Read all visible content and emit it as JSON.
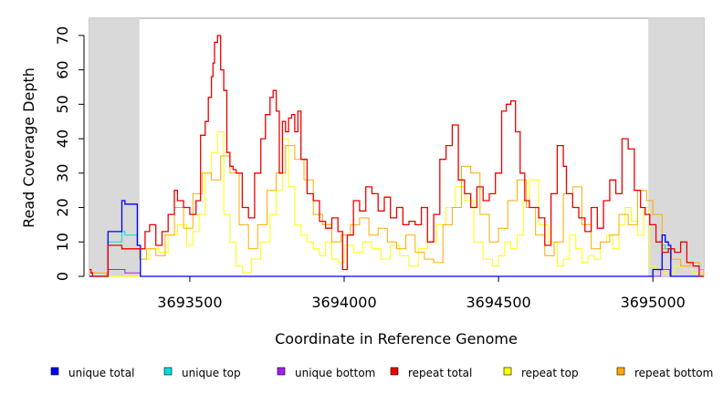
{
  "chart_data": {
    "type": "line",
    "title": "",
    "xlabel": "Coordinate in Reference Genome",
    "ylabel": "Read Coverage Depth",
    "xlim": [
      3693175,
      3695165
    ],
    "ylim": [
      0,
      75
    ],
    "x_ticks": [
      3693500,
      3694000,
      3694500,
      3695000
    ],
    "x_tick_labels": [
      "3693500",
      "3694000",
      "3694500",
      "3695000"
    ],
    "y_ticks": [
      0,
      10,
      20,
      30,
      40,
      50,
      60,
      70
    ],
    "y_tick_labels": [
      "0",
      "10",
      "20",
      "30",
      "40",
      "50",
      "60",
      "70"
    ],
    "shaded_regions": [
      [
        3693175,
        3693337
      ],
      [
        3694985,
        3695165
      ]
    ],
    "grid": false,
    "legend_position": "bottom",
    "series": [
      {
        "name": "unique total",
        "color": "#0000ff",
        "x": [
          3693175,
          3693230,
          3693235,
          3693275,
          3693280,
          3693290,
          3693330,
          3693337,
          3693340,
          3694990,
          3695000,
          3695030,
          3695040,
          3695050,
          3695058,
          3695165
        ],
        "values": [
          0,
          0,
          13,
          13,
          22,
          21,
          9,
          9,
          0,
          0,
          2,
          12,
          10,
          9,
          0,
          0
        ]
      },
      {
        "name": "unique top",
        "color": "#00dddd",
        "x": [
          3693175,
          3693230,
          3693235,
          3693275,
          3693280,
          3693290,
          3693330,
          3693337,
          3693340,
          3694990,
          3695000,
          3695030,
          3695040,
          3695050,
          3695058,
          3695165
        ],
        "values": [
          0,
          0,
          10,
          10,
          13,
          12,
          9,
          9,
          0,
          0,
          2,
          9,
          8,
          7,
          0,
          0
        ]
      },
      {
        "name": "unique bottom",
        "color": "#a020f0",
        "x": [
          3693175,
          3693230,
          3693236,
          3693280,
          3693290,
          3693337,
          3693340,
          3694995,
          3695025,
          3695040,
          3695055,
          3695165
        ],
        "values": [
          0,
          0,
          2,
          2,
          1,
          1,
          0,
          0,
          2,
          2,
          0,
          0
        ]
      },
      {
        "name": "repeat total",
        "color": "#ee0000",
        "x": [
          3693175,
          3693180,
          3693185,
          3693230,
          3693235,
          3693275,
          3693280,
          3693337,
          3693355,
          3693370,
          3693390,
          3693410,
          3693430,
          3693450,
          3693460,
          3693480,
          3693500,
          3693520,
          3693535,
          3693550,
          3693560,
          3693570,
          3693575,
          3693580,
          3693590,
          3693600,
          3693610,
          3693620,
          3693630,
          3693640,
          3693650,
          3693670,
          3693690,
          3693710,
          3693730,
          3693745,
          3693760,
          3693770,
          3693780,
          3693790,
          3693800,
          3693810,
          3693820,
          3693830,
          3693840,
          3693850,
          3693860,
          3693880,
          3693900,
          3693920,
          3693940,
          3693960,
          3693980,
          3693995,
          3694010,
          3694030,
          3694050,
          3694070,
          3694090,
          3694110,
          3694130,
          3694150,
          3694170,
          3694190,
          3694210,
          3694230,
          3694250,
          3694270,
          3694290,
          3694310,
          3694330,
          3694350,
          3694370,
          3694390,
          3694410,
          3694430,
          3694450,
          3694470,
          3694490,
          3694510,
          3694525,
          3694540,
          3694555,
          3694570,
          3694585,
          3694600,
          3694630,
          3694650,
          3694670,
          3694690,
          3694710,
          3694720,
          3694740,
          3694760,
          3694780,
          3694800,
          3694820,
          3694840,
          3694860,
          3694880,
          3694900,
          3694920,
          3694940,
          3694960,
          3694975,
          3694990,
          3695010,
          3695030,
          3695050,
          3695070,
          3695090,
          3695110,
          3695130,
          3695150,
          3695165
        ],
        "values": [
          2,
          1,
          0,
          0,
          9,
          9,
          8,
          8,
          13,
          15,
          9,
          13,
          18,
          25,
          22,
          20,
          18,
          22,
          41,
          45,
          52,
          58,
          62,
          68,
          70,
          60,
          54,
          36,
          32,
          31,
          30,
          20,
          17,
          30,
          40,
          47,
          52,
          54,
          48,
          30,
          45,
          42,
          46,
          47,
          42,
          48,
          34,
          24,
          22,
          16,
          14,
          17,
          13,
          2,
          12,
          22,
          19,
          26,
          24,
          19,
          23,
          17,
          20,
          15,
          16,
          15,
          20,
          10,
          18,
          34,
          38,
          44,
          28,
          24,
          20,
          26,
          22,
          24,
          30,
          48,
          50,
          51,
          42,
          30,
          22,
          20,
          17,
          9,
          24,
          38,
          32,
          24,
          20,
          17,
          13,
          20,
          14,
          22,
          28,
          24,
          40,
          37,
          25,
          20,
          18,
          15,
          10,
          7,
          8,
          7,
          10,
          4,
          3,
          0,
          0
        ]
      },
      {
        "name": "repeat top",
        "color": "#ffff00",
        "x": [
          3693175,
          3693340,
          3693370,
          3693400,
          3693430,
          3693460,
          3693490,
          3693510,
          3693530,
          3693550,
          3693570,
          3693590,
          3693610,
          3693630,
          3693650,
          3693670,
          3693700,
          3693730,
          3693760,
          3693780,
          3693800,
          3693820,
          3693840,
          3693860,
          3693880,
          3693900,
          3693920,
          3693940,
          3693960,
          3693980,
          3694000,
          3694030,
          3694060,
          3694090,
          3694120,
          3694150,
          3694180,
          3694210,
          3694240,
          3694270,
          3694300,
          3694330,
          3694360,
          3694390,
          3694420,
          3694450,
          3694480,
          3694500,
          3694520,
          3694540,
          3694560,
          3694580,
          3694600,
          3694630,
          3694660,
          3694690,
          3694710,
          3694730,
          3694750,
          3694770,
          3694790,
          3694810,
          3694830,
          3694850,
          3694870,
          3694890,
          3694910,
          3694930,
          3694950,
          3694970,
          3694990,
          3695010,
          3695040,
          3695070,
          3695100,
          3695130,
          3695165
        ],
        "values": [
          0,
          5,
          8,
          7,
          12,
          15,
          9,
          13,
          18,
          30,
          36,
          42,
          18,
          10,
          3,
          1,
          5,
          10,
          18,
          25,
          40,
          26,
          15,
          12,
          10,
          8,
          6,
          10,
          5,
          4,
          9,
          7,
          10,
          8,
          5,
          9,
          6,
          3,
          8,
          10,
          15,
          20,
          26,
          22,
          10,
          5,
          3,
          6,
          10,
          8,
          12,
          22,
          28,
          15,
          10,
          3,
          5,
          12,
          8,
          4,
          6,
          5,
          10,
          12,
          8,
          15,
          20,
          16,
          12,
          20,
          3,
          2,
          1,
          3,
          2,
          1,
          0
        ]
      },
      {
        "name": "repeat bottom",
        "color": "#ffaa00",
        "x": [
          3693175,
          3693230,
          3693235,
          3693275,
          3693280,
          3693337,
          3693360,
          3693390,
          3693420,
          3693450,
          3693480,
          3693510,
          3693540,
          3693570,
          3693600,
          3693630,
          3693660,
          3693690,
          3693720,
          3693750,
          3693780,
          3693810,
          3693840,
          3693870,
          3693900,
          3693930,
          3693960,
          3693990,
          3694020,
          3694050,
          3694080,
          3694110,
          3694140,
          3694170,
          3694200,
          3694230,
          3694260,
          3694290,
          3694320,
          3694350,
          3694380,
          3694410,
          3694440,
          3694470,
          3694500,
          3694530,
          3694560,
          3694590,
          3694620,
          3694650,
          3694680,
          3694710,
          3694740,
          3694770,
          3694800,
          3694830,
          3694860,
          3694890,
          3694920,
          3694950,
          3694980,
          3695000,
          3695030,
          3695060,
          3695090,
          3695120,
          3695150,
          3695165
        ],
        "values": [
          1,
          0,
          9,
          9,
          8,
          5,
          8,
          6,
          12,
          20,
          14,
          24,
          30,
          28,
          35,
          30,
          15,
          8,
          15,
          25,
          30,
          38,
          34,
          28,
          18,
          15,
          10,
          12,
          15,
          17,
          12,
          14,
          10,
          8,
          12,
          7,
          5,
          4,
          15,
          20,
          32,
          30,
          18,
          10,
          14,
          22,
          28,
          20,
          12,
          6,
          10,
          24,
          26,
          15,
          8,
          10,
          12,
          18,
          15,
          25,
          22,
          18,
          8,
          5,
          3,
          4,
          2,
          0
        ]
      }
    ]
  }
}
